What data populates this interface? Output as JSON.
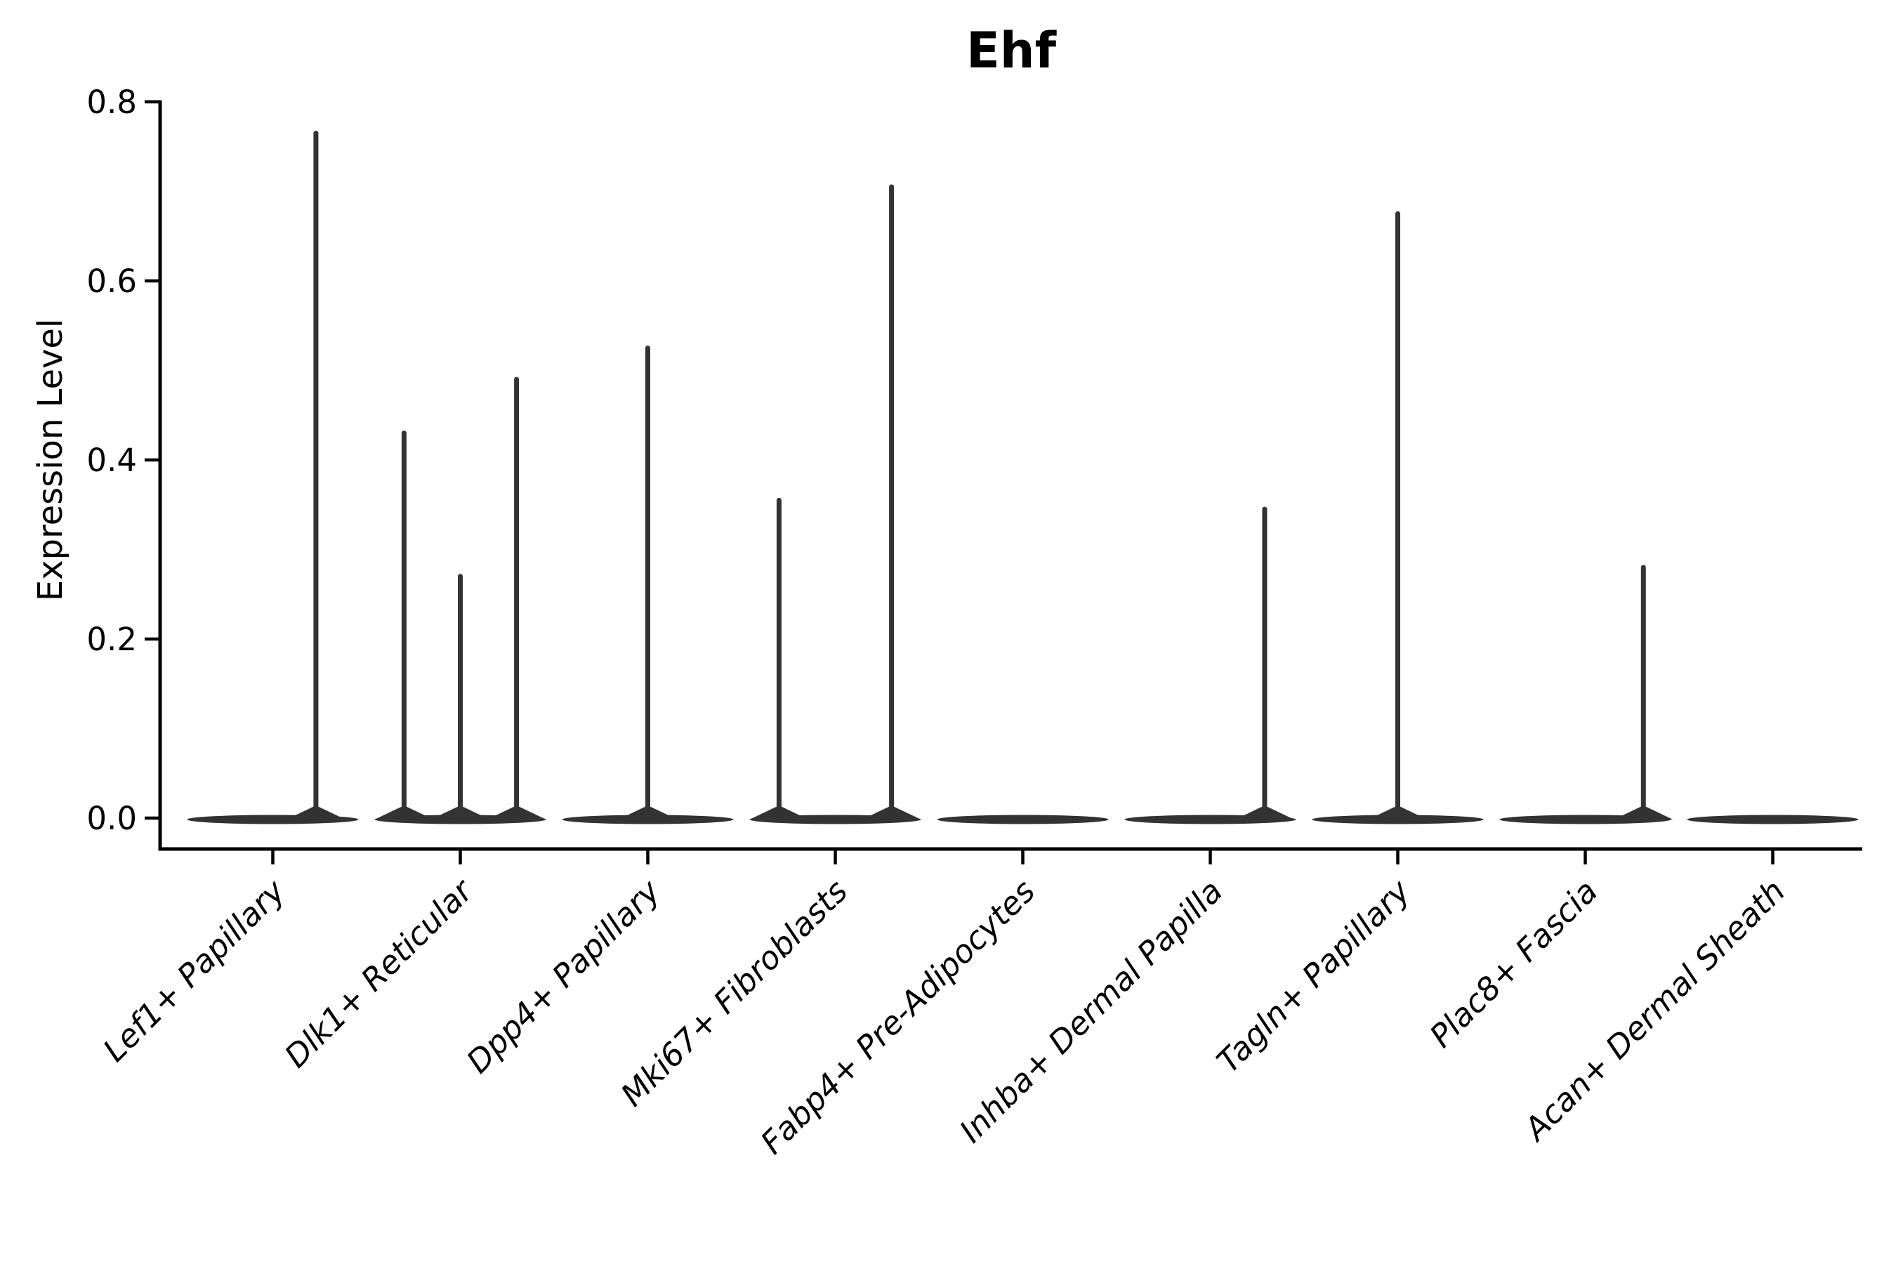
{
  "figure": {
    "background": "#ffffff"
  },
  "chart_data": {
    "type": "violin",
    "title": "Ehf",
    "ylabel": "Expression Level",
    "xlabel": "",
    "ylim": [
      0.0,
      0.8
    ],
    "yticks": [
      0.0,
      0.2,
      0.4,
      0.6,
      0.8
    ],
    "grid": false,
    "legend": false,
    "categories": [
      "Lef1+ Papillary",
      "Dlk1+ Reticular",
      "Dpp4+ Papillary",
      "Mki67+ Fibroblasts",
      "Fabp4+ Pre-Adipocytes",
      "Inhba+ Dermal Papilla",
      "Tagln+ Papillary",
      "Plac8+ Fascia",
      "Acan+ Dermal Sheath"
    ],
    "violins": [
      {
        "category": "Lef1+ Papillary",
        "base_value": 0.0,
        "spikes": [
          {
            "offset": 0.23,
            "max": 0.765
          }
        ]
      },
      {
        "category": "Dlk1+ Reticular",
        "base_value": 0.0,
        "spikes": [
          {
            "offset": -0.3,
            "max": 0.43
          },
          {
            "offset": 0.0,
            "max": 0.27
          },
          {
            "offset": 0.3,
            "max": 0.49
          }
        ]
      },
      {
        "category": "Dpp4+ Papillary",
        "base_value": 0.0,
        "spikes": [
          {
            "offset": 0.0,
            "max": 0.525
          }
        ]
      },
      {
        "category": "Mki67+ Fibroblasts",
        "base_value": 0.0,
        "spikes": [
          {
            "offset": -0.3,
            "max": 0.355
          },
          {
            "offset": 0.3,
            "max": 0.705
          }
        ]
      },
      {
        "category": "Fabp4+ Pre-Adipocytes",
        "base_value": 0.0,
        "spikes": []
      },
      {
        "category": "Inhba+ Dermal Papilla",
        "base_value": 0.0,
        "spikes": [
          {
            "offset": 0.29,
            "max": 0.345
          }
        ]
      },
      {
        "category": "Tagln+ Papillary",
        "base_value": 0.0,
        "spikes": [
          {
            "offset": 0.0,
            "max": 0.675
          }
        ]
      },
      {
        "category": "Plac8+ Fascia",
        "base_value": 0.0,
        "spikes": [
          {
            "offset": 0.31,
            "max": 0.28
          }
        ]
      },
      {
        "category": "Acan+ Dermal Sheath",
        "base_value": 0.0,
        "spikes": []
      }
    ],
    "colors": {
      "violin": "#333333",
      "axis": "#000000",
      "text": "#000000",
      "background": "#ffffff"
    }
  }
}
